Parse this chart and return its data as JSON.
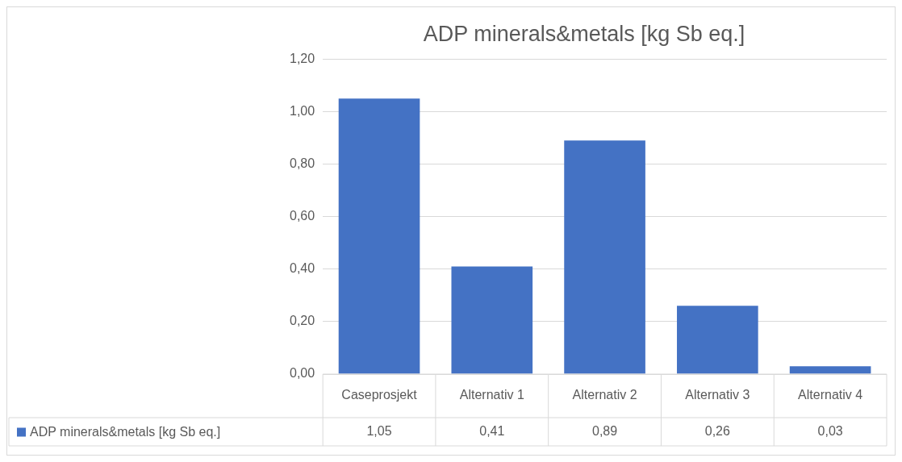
{
  "chart_data": {
    "type": "bar",
    "title": "ADP minerals&metals [kg Sb eq.]",
    "categories": [
      "Caseprosjekt",
      "Alternativ 1",
      "Alternativ 2",
      "Alternativ 3",
      "Alternativ 4"
    ],
    "series": [
      {
        "name": "ADP minerals&metals [kg Sb eq.]",
        "color": "#4472c4",
        "values": [
          1.05,
          0.41,
          0.89,
          0.26,
          0.03
        ],
        "value_labels": [
          "1,05",
          "0,41",
          "0,89",
          "0,26",
          "0,03"
        ]
      }
    ],
    "ylim": [
      0,
      1.2
    ],
    "yticks": [
      {
        "value": 0,
        "label": "0,00"
      },
      {
        "value": 0.2,
        "label": "0,20"
      },
      {
        "value": 0.4,
        "label": "0,40"
      },
      {
        "value": 0.6,
        "label": "0,60"
      },
      {
        "value": 0.8,
        "label": "0,80"
      },
      {
        "value": 1,
        "label": "1,00"
      },
      {
        "value": 1.2,
        "label": "1,20"
      }
    ],
    "grid": "y",
    "legend": "bottom",
    "data_labels": true
  }
}
